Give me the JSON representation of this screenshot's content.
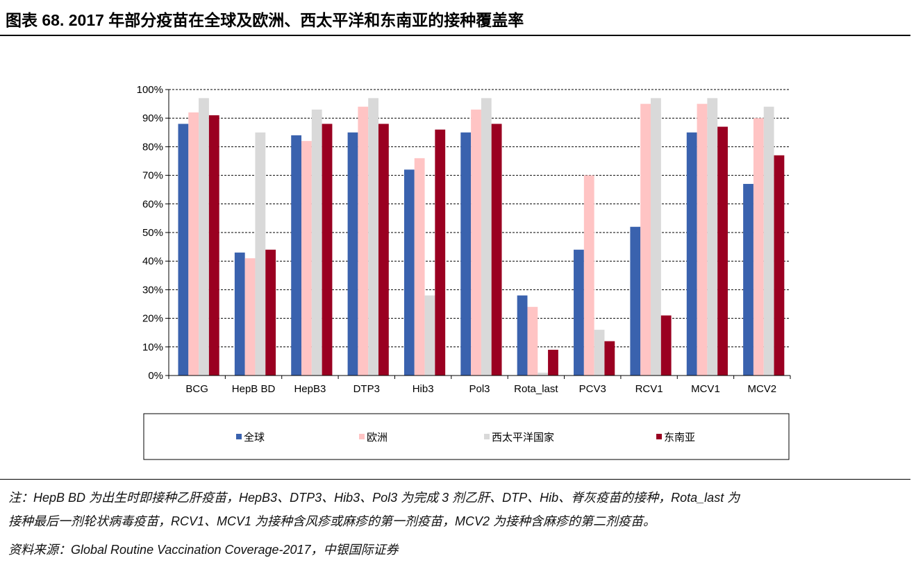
{
  "title": "图表 68. 2017 年部分疫苗在全球及欧洲、西太平洋和东南亚的接种覆盖率",
  "notes": {
    "line1": "注：HepB BD 为出生时即接种乙肝疫苗，HepB3、DTP3、Hib3、Pol3 为完成 3 剂乙肝、DTP、Hib、脊灰疫苗的接种，Rota_last 为",
    "line2": "接种最后一剂轮状病毒疫苗，RCV1、MCV1 为接种含风疹或麻疹的第一剂疫苗，MCV2 为接种含麻疹的第二剂疫苗。",
    "source": "资料来源：Global Routine Vaccination Coverage-2017，中银国际证券"
  },
  "chart_data": {
    "type": "bar",
    "title": "",
    "xlabel": "",
    "ylabel": "",
    "ylim": [
      0,
      100
    ],
    "yticks": [
      "0%",
      "10%",
      "20%",
      "30%",
      "40%",
      "50%",
      "60%",
      "70%",
      "80%",
      "90%",
      "100%"
    ],
    "grid": "horizontal dashed",
    "legend_position": "bottom",
    "categories": [
      "BCG",
      "HepB BD",
      "HepB3",
      "DTP3",
      "Hib3",
      "Pol3",
      "Rota_last",
      "PCV3",
      "RCV1",
      "MCV1",
      "MCV2"
    ],
    "series": [
      {
        "name": "全球",
        "color": "#3A62AE",
        "values": [
          88,
          43,
          84,
          85,
          72,
          85,
          28,
          44,
          52,
          85,
          67
        ]
      },
      {
        "name": "欧洲",
        "color": "#FFC4C4",
        "values": [
          92,
          41,
          82,
          94,
          76,
          93,
          24,
          70,
          95,
          95,
          90
        ]
      },
      {
        "name": "西太平洋国家",
        "color": "#D9D9D9",
        "values": [
          97,
          85,
          93,
          97,
          28,
          97,
          1,
          16,
          97,
          97,
          94
        ]
      },
      {
        "name": "东南亚",
        "color": "#9A0021",
        "values": [
          91,
          44,
          88,
          88,
          86,
          88,
          9,
          12,
          21,
          87,
          77
        ]
      }
    ]
  }
}
